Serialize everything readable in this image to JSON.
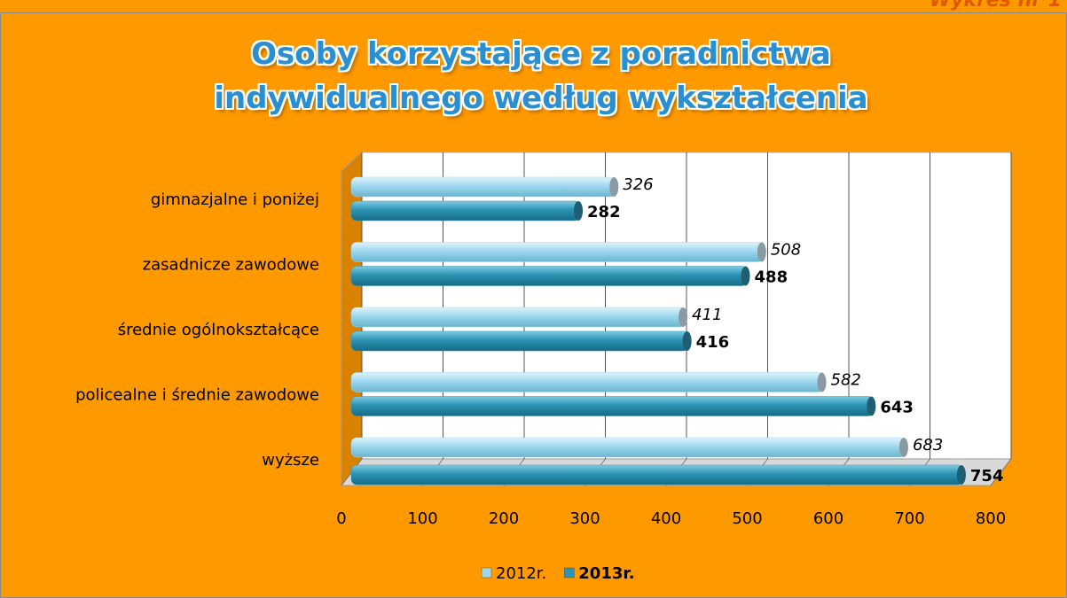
{
  "chart_data": {
    "type": "hbar",
    "title": "Osoby korzystające z poradnictwa indywidualnego według wykształcenia",
    "annotation": "Wykres nr 1",
    "categories": [
      "gimnazjalne i poniżej",
      "zasadnicze zawodowe",
      "średnie ogólnokształcące",
      "policealne i średnie zawodowe",
      "wyższe"
    ],
    "series": [
      {
        "name": "2012r.",
        "color": "#9ed8ef",
        "values": [
          326,
          508,
          411,
          582,
          683
        ]
      },
      {
        "name": "2013r.",
        "color": "#2b93b3",
        "values": [
          282,
          488,
          416,
          643,
          754
        ]
      }
    ],
    "xlim": [
      0,
      800
    ],
    "xticks": [
      0,
      100,
      200,
      300,
      400,
      500,
      600,
      700,
      800
    ],
    "grid": true,
    "legend": "bottom"
  }
}
